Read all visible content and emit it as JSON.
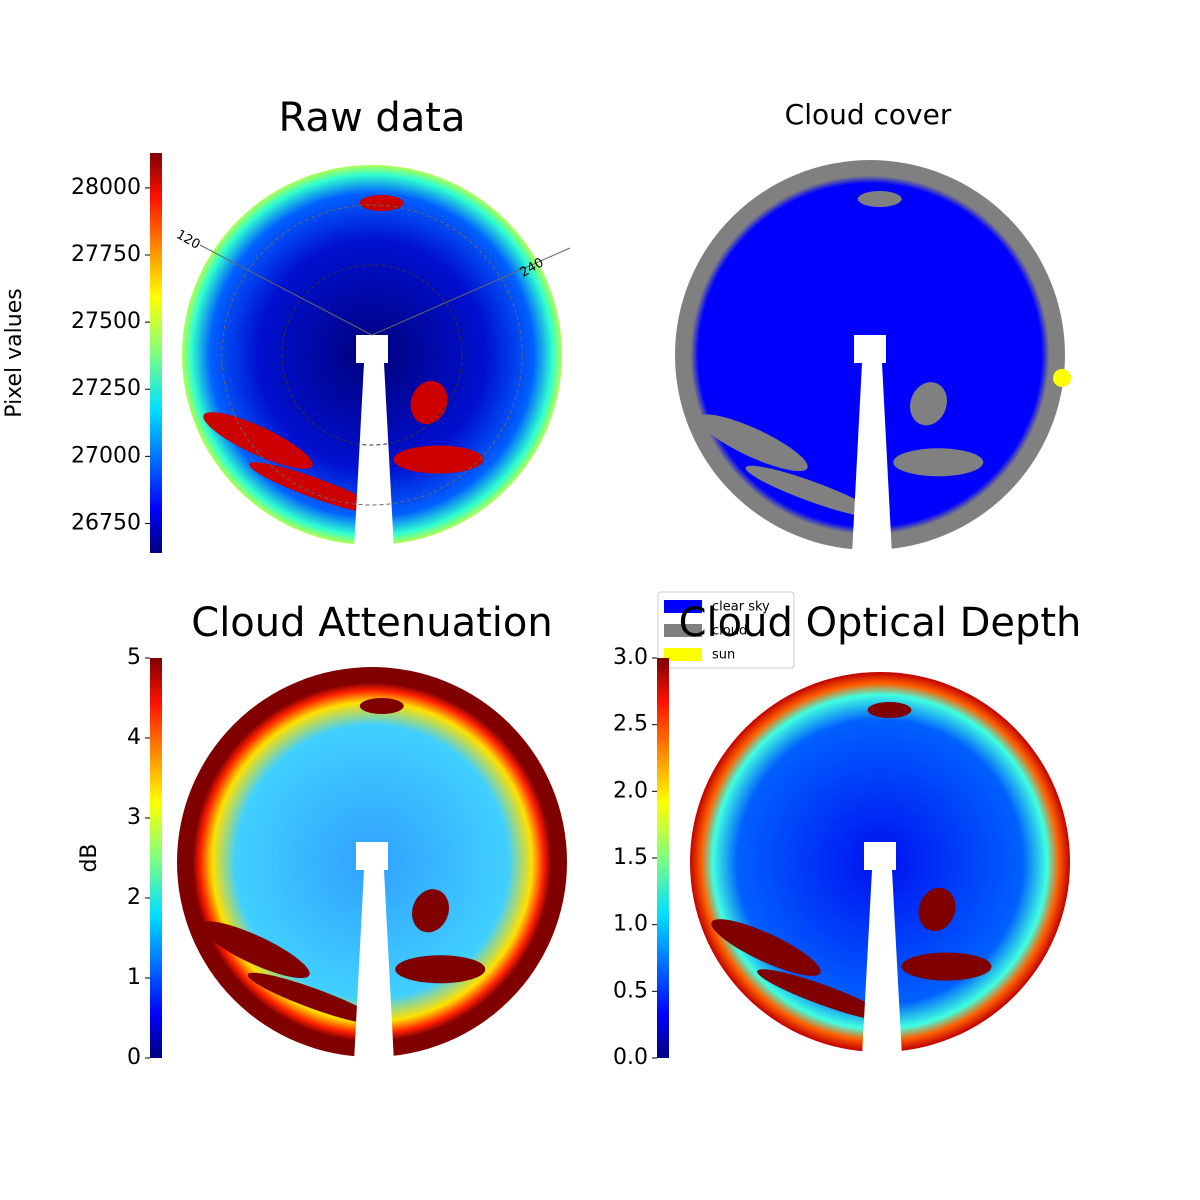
{
  "chart_data": [
    {
      "type": "image",
      "title": "Raw data",
      "colorbar_label": "Pixel values",
      "colormap": "jet",
      "ylim": [
        26640,
        28130
      ],
      "yticks": [
        26750,
        27000,
        27250,
        27500,
        27750,
        28000
      ],
      "annotations": [
        "120",
        "240"
      ]
    },
    {
      "type": "classification",
      "title": "Cloud cover",
      "series": [
        {
          "name": "clear sky",
          "color": "#0000ff"
        },
        {
          "name": "cloud",
          "color": "#808080"
        },
        {
          "name": "sun",
          "color": "#ffff00"
        }
      ]
    },
    {
      "type": "image",
      "title": "Cloud Attenuation",
      "colorbar_label": "dB",
      "colormap": "jet",
      "ylim": [
        0,
        5
      ],
      "yticks": [
        0,
        1,
        2,
        3,
        4,
        5
      ]
    },
    {
      "type": "image",
      "title": "Cloud Optical Depth",
      "colormap": "jet",
      "ylim": [
        0,
        3
      ],
      "yticks": [
        {
          "value": 0,
          "label": "0.0"
        },
        {
          "value": 0.5,
          "label": "0.5"
        },
        {
          "value": 1,
          "label": "1.0"
        },
        {
          "value": 1.5,
          "label": "1.5"
        },
        {
          "value": 2,
          "label": "2.0"
        },
        {
          "value": 2.5,
          "label": "2.5"
        },
        {
          "value": 3,
          "label": "3.0"
        }
      ]
    }
  ]
}
